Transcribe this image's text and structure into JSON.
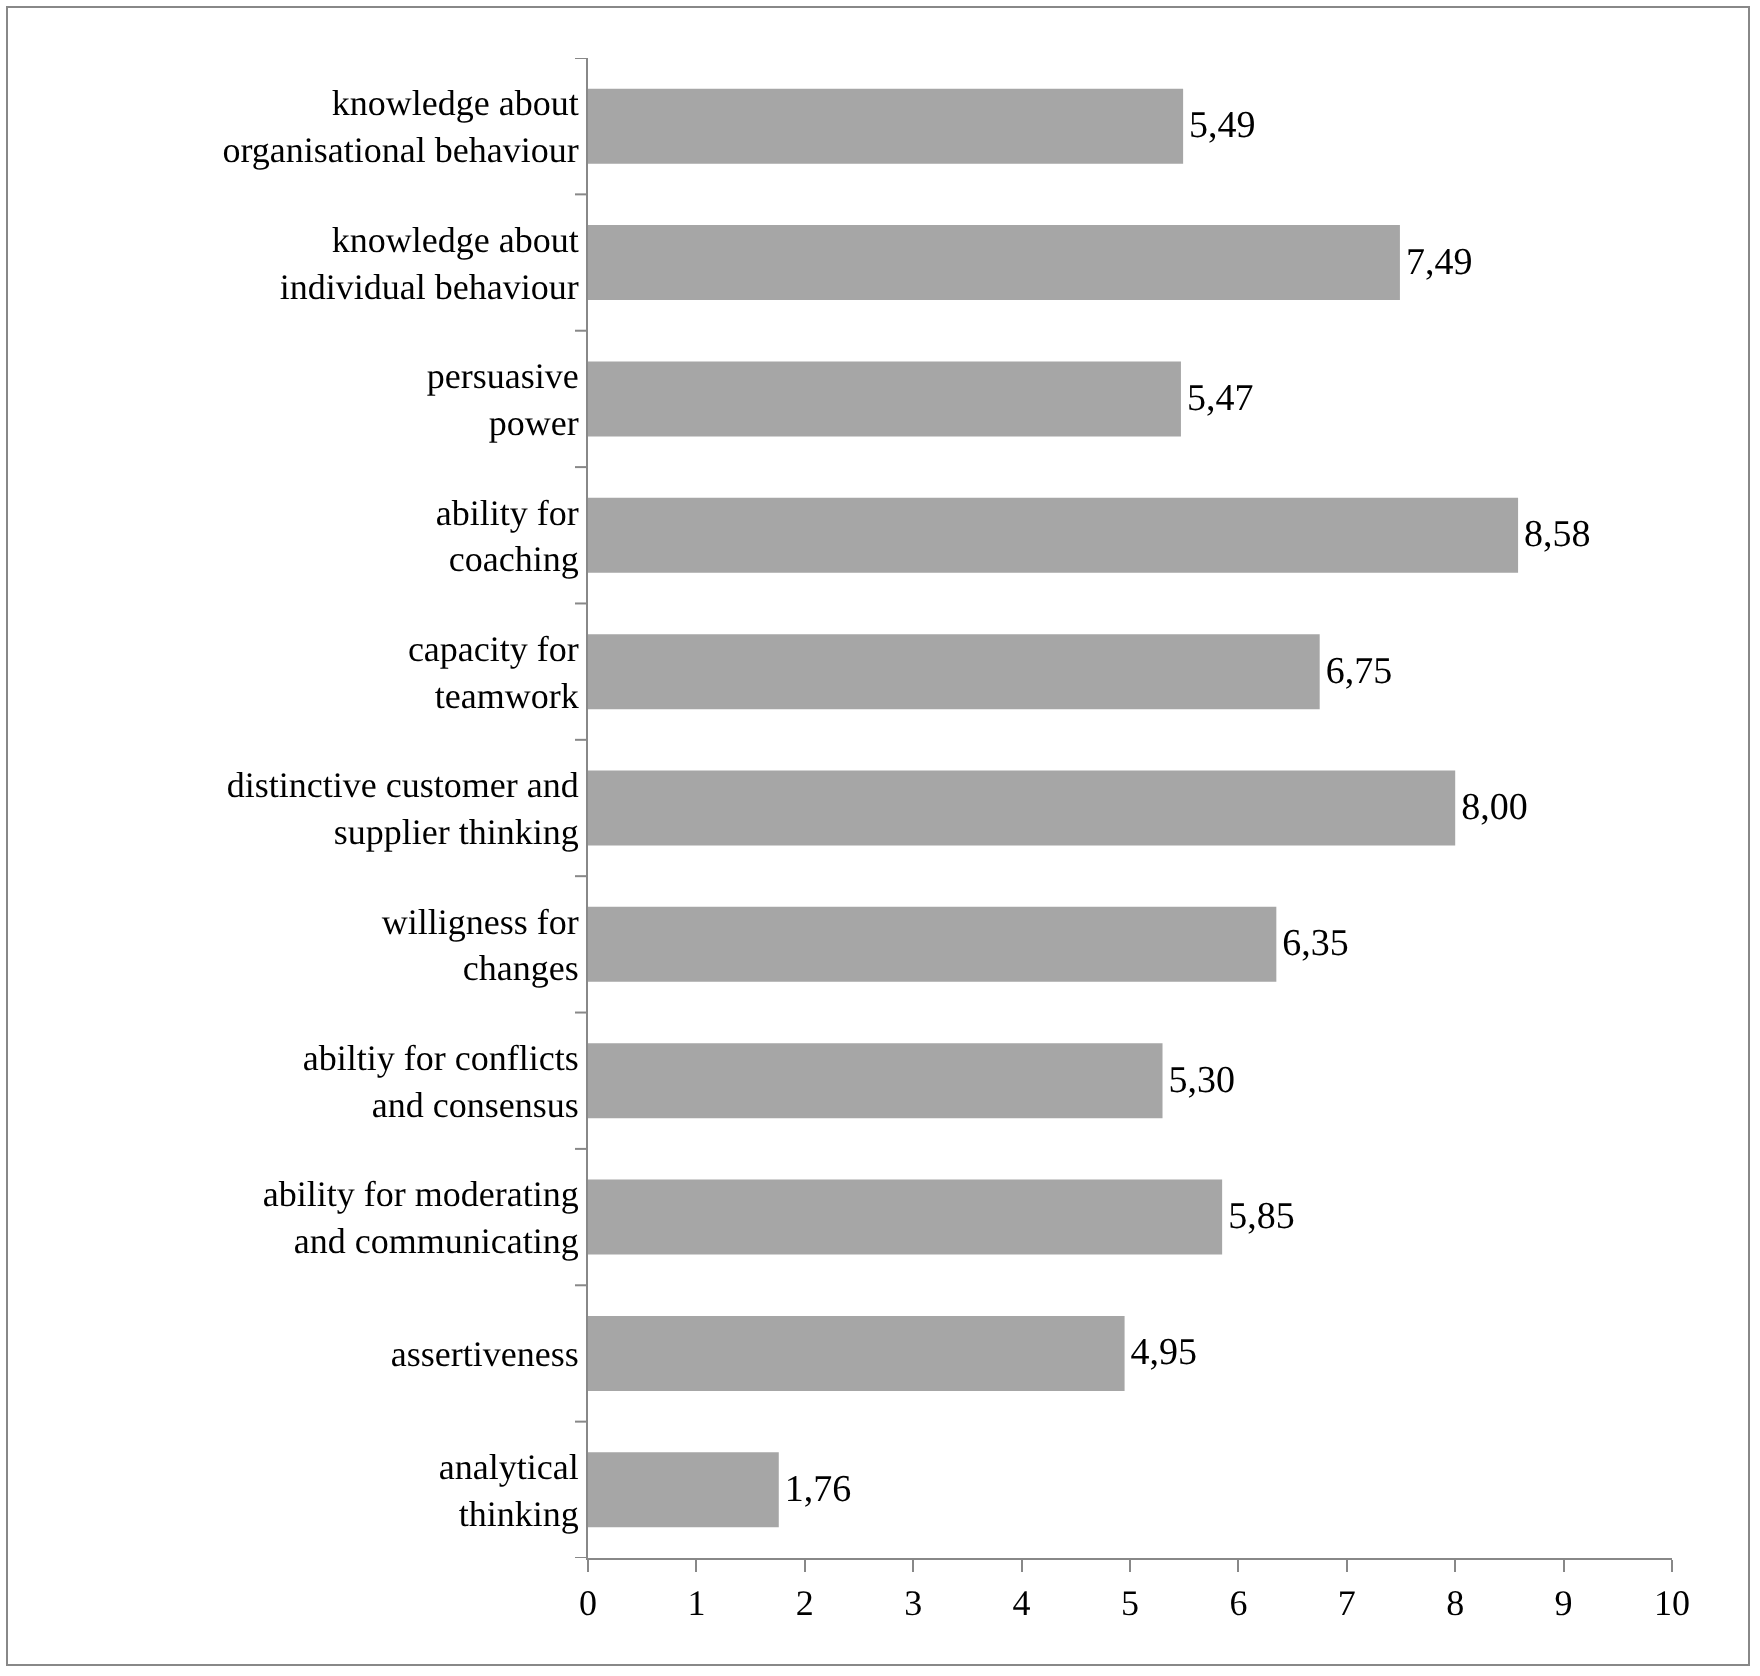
{
  "chart_data": {
    "type": "bar",
    "orientation": "horizontal",
    "categories": [
      "knowledge about\norganisational behaviour",
      "knowledge about\nindividual behaviour",
      "persuasive\npower",
      "ability for\ncoaching",
      "capacity for\nteamwork",
      "distinctive customer and\nsupplier thinking",
      "willigness for\nchanges",
      "abiltiy for conflicts\nand consensus",
      "ability for moderating\nand communicating",
      "assertiveness",
      "analytical\nthinking"
    ],
    "values": [
      5.49,
      7.49,
      5.47,
      8.58,
      6.75,
      8.0,
      6.35,
      5.3,
      5.85,
      4.95,
      1.76
    ],
    "value_labels": [
      "5,49",
      "7,49",
      "5,47",
      "8,58",
      "6,75",
      "8,00",
      "6,35",
      "5,30",
      "5,85",
      "4,95",
      "1,76"
    ],
    "color": "#a6a6a6",
    "xlim": [
      0,
      10
    ],
    "xticks": [
      0,
      1,
      2,
      3,
      4,
      5,
      6,
      7,
      8,
      9,
      10
    ]
  }
}
